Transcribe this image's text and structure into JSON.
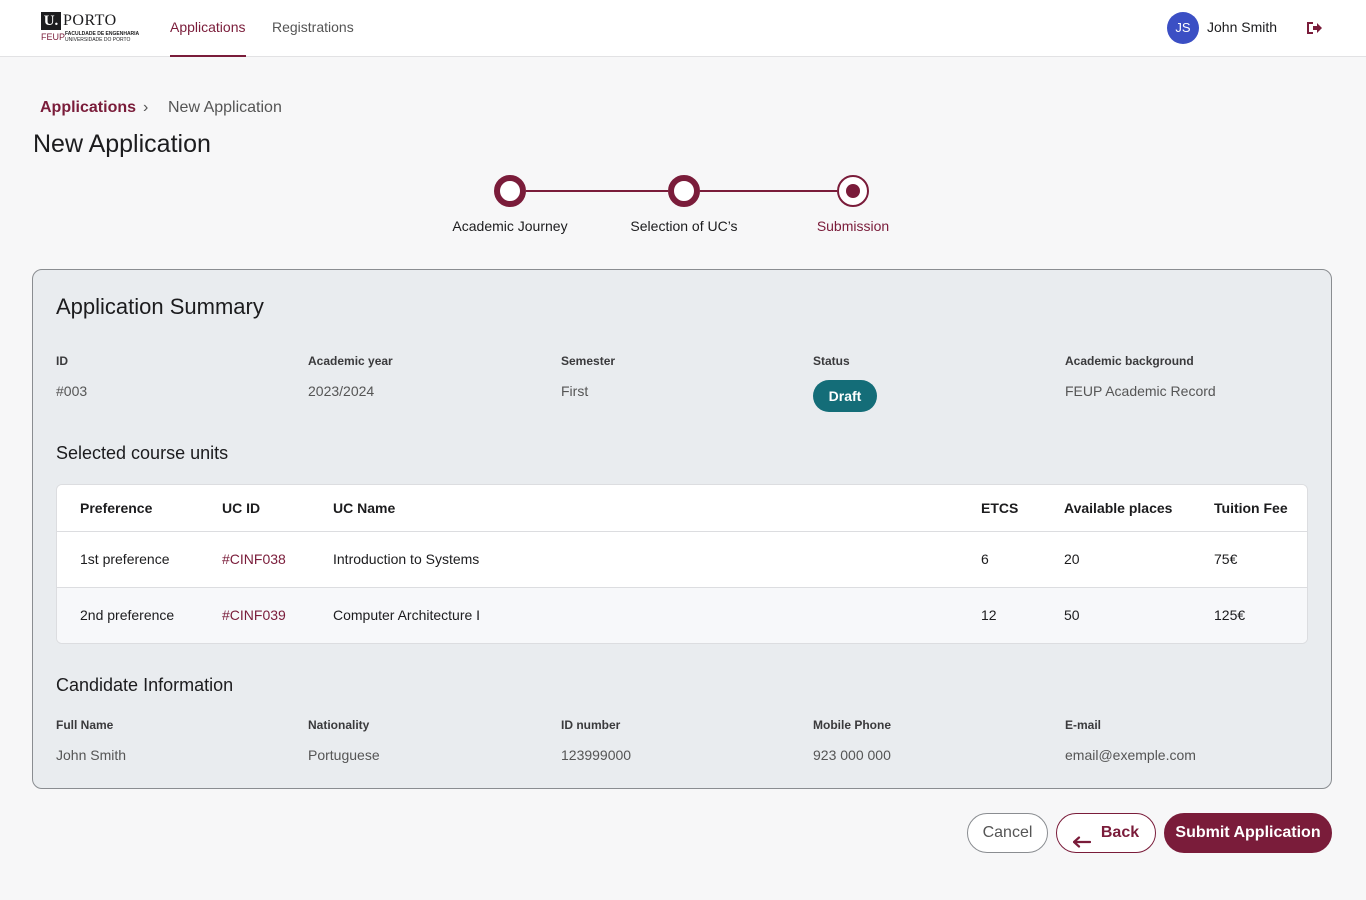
{
  "header": {
    "logo": {
      "u": "U.",
      "porto": "PORTO",
      "feup": "FEUP",
      "faculty": "FACULDADE DE ENGENHARIA",
      "university": "UNIVERSIDADE DO PORTO"
    },
    "nav": [
      {
        "label": "Applications",
        "active": true
      },
      {
        "label": "Registrations",
        "active": false
      }
    ],
    "user": {
      "initials": "JS",
      "name": "John Smith",
      "avatar_color": "#3b4fc4"
    },
    "logout_icon": "logout-icon"
  },
  "breadcrumb": {
    "parent": "Applications",
    "separator": "›",
    "current": "New Application"
  },
  "page_title": "New Application",
  "stepper": {
    "steps": [
      {
        "label": "Academic Journey",
        "state": "done"
      },
      {
        "label": "Selection of UC’s",
        "state": "done"
      },
      {
        "label": "Submission",
        "state": "current"
      }
    ]
  },
  "summary": {
    "title": "Application Summary",
    "fields": [
      {
        "label": "ID",
        "value": "#003"
      },
      {
        "label": "Academic year",
        "value": "2023/2024"
      },
      {
        "label": "Semester",
        "value": "First"
      },
      {
        "label": "Status",
        "value": "Draft"
      },
      {
        "label": "Academic background",
        "value": "FEUP Academic Record"
      }
    ],
    "status_color": "#146d78"
  },
  "course_units": {
    "title": "Selected course units",
    "columns": [
      "Preference",
      "UC ID",
      "UC Name",
      "ETCS",
      "Available places",
      "Tuition Fee"
    ],
    "rows": [
      {
        "preference": "1st preference",
        "uc_id": "#CINF038",
        "uc_name": "Introduction to Systems",
        "etcs": "6",
        "places": "20",
        "fee": "75€"
      },
      {
        "preference": "2nd preference",
        "uc_id": "#CINF039",
        "uc_name": "Computer Architecture I",
        "etcs": "12",
        "places": "50",
        "fee": "125€"
      }
    ]
  },
  "candidate": {
    "title": "Candidate Information",
    "fields": [
      {
        "label": "Full Name",
        "value": "John Smith"
      },
      {
        "label": "Nationality",
        "value": "Portuguese"
      },
      {
        "label": "ID number",
        "value": "123999000"
      },
      {
        "label": "Mobile Phone",
        "value": "923 000 000"
      },
      {
        "label": "E-mail",
        "value": "email@exemple.com"
      }
    ]
  },
  "actions": {
    "cancel": "Cancel",
    "back": "Back",
    "submit": "Submit Application"
  },
  "colors": {
    "brand": "#7a1c3a",
    "status": "#146d78"
  }
}
